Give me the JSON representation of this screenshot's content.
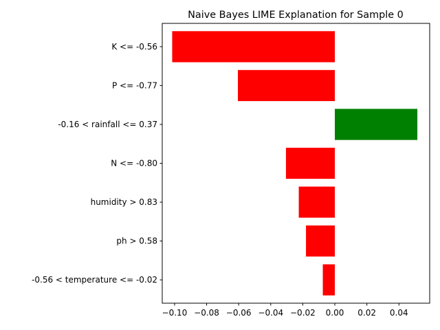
{
  "chart_data": {
    "type": "bar",
    "orientation": "horizontal",
    "title": "Naive Bayes LIME Explanation for Sample 0",
    "xlabel": "",
    "ylabel": "",
    "categories": [
      "K <= -0.56",
      "P <= -0.77",
      "-0.16 < rainfall <= 0.37",
      "N <= -0.80",
      "humidity > 0.83",
      "ph > 0.58",
      "-0.56 < temperature <= -0.02"
    ],
    "values": [
      -0.1015,
      -0.0605,
      0.0515,
      -0.0305,
      -0.0225,
      -0.018,
      -0.0075
    ],
    "xlim": [
      -0.1077,
      0.0592
    ],
    "xticks": [
      -0.1,
      -0.08,
      -0.06,
      -0.04,
      -0.02,
      0.0,
      0.02,
      0.04
    ],
    "xtick_labels": [
      "−0.10",
      "−0.08",
      "−0.06",
      "−0.04",
      "−0.02",
      "0.00",
      "0.02",
      "0.04"
    ],
    "positive_color": "#008000",
    "negative_color": "#ff0000",
    "grid": false,
    "legend": "none"
  }
}
